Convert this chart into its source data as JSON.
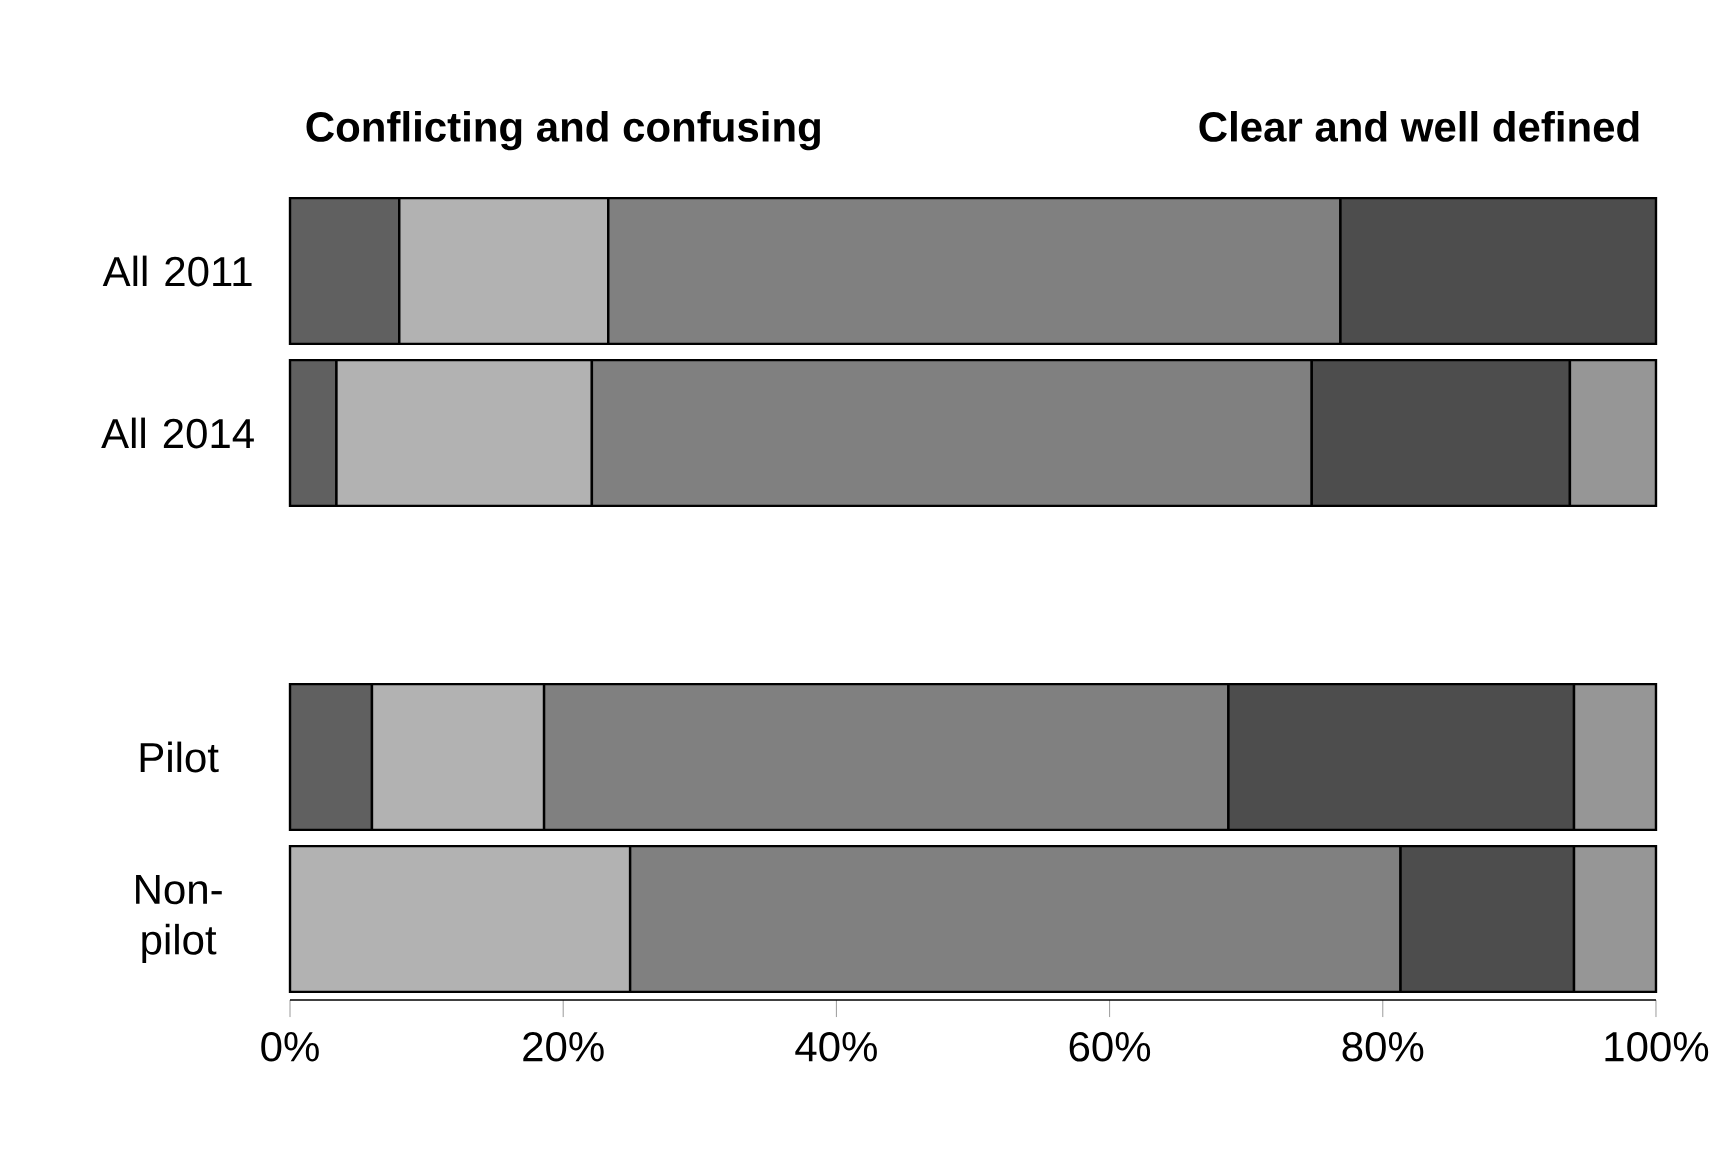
{
  "chart_data": {
    "type": "bar",
    "orientation": "horizontal",
    "stacked": true,
    "categories": [
      "All 2011",
      "All 2014",
      null,
      "Pilot",
      "Non-pilot"
    ],
    "series": [
      {
        "color": "#606060",
        "values": [
          8,
          3.4,
          null,
          6,
          null
        ]
      },
      {
        "color": "#b2b2b2",
        "values": [
          15.3,
          18.7,
          null,
          12.6,
          24.9
        ]
      },
      {
        "color": "#808080",
        "values": [
          53.6,
          52.7,
          null,
          50.1,
          56.4
        ]
      },
      {
        "color": "#4d4d4d",
        "values": [
          23.1,
          18.9,
          null,
          25.3,
          12.7
        ]
      },
      {
        "color": "#969696",
        "values": [
          null,
          6.3,
          null,
          6,
          6
        ]
      }
    ],
    "xlim": [
      0,
      100
    ],
    "xticks": [
      {
        "value": 0,
        "label": "0%"
      },
      {
        "value": 20,
        "label": "20%"
      },
      {
        "value": 40,
        "label": "40%"
      },
      {
        "value": 60,
        "label": "60%"
      },
      {
        "value": 80,
        "label": "80%"
      },
      {
        "value": 100,
        "label": "100%"
      }
    ],
    "annotations": [
      "Conflicting and  confusing",
      "Clear and well defined"
    ]
  }
}
